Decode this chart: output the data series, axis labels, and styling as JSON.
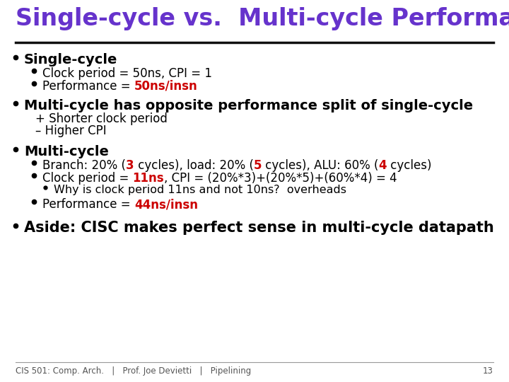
{
  "title": "Single-cycle vs.  Multi-cycle Performance",
  "title_color": "#6633CC",
  "background_color": "#FFFFFF",
  "separator_color": "#111111",
  "body_text_color": "#000000",
  "highlight_red": "#CC0000",
  "footer": "CIS 501: Comp. Arch.   |   Prof. Joe Devietti   |   Pipelining",
  "footer_page": "13",
  "bullet1_main": "Single-cycle",
  "bullet1_sub1": "Clock period = 50ns, CPI = 1",
  "bullet1_sub2_prefix": "Performance = ",
  "bullet1_sub2_highlight": "50ns/insn",
  "bullet2_main": "Multi-cycle has opposite performance split of single-cycle",
  "bullet2_sub1": "+ Shorter clock period",
  "bullet2_sub2": "– Higher CPI",
  "bullet3_main": "Multi-cycle",
  "bullet3_sub3": "Why is clock period 11ns and not 10ns?  overheads",
  "bullet3_sub4_prefix": "Performance = ",
  "bullet3_sub4_highlight": "44ns/insn",
  "bullet4_main": "Aside: CISC makes perfect sense in multi-cycle datapath",
  "font_family": "DejaVu Sans"
}
